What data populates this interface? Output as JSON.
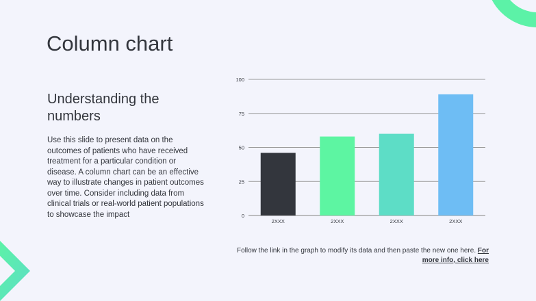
{
  "slide": {
    "title": "Column chart",
    "subtitle": "Understanding the numbers",
    "body": "Use this slide to present data on the outcomes of patients who have received treatment for a particular condition or disease. A column chart can be an effective way to illustrate changes in patient outcomes over time. Consider including data from clinical trials or real-world patient populations to showcase the impact",
    "footnote_text": "Follow the link in the graph to modify its data and then paste the new one here.",
    "footnote_link": "For more info, click here"
  },
  "colors": {
    "background": "#f3f4fc",
    "text": "#33363d",
    "accent_green": "#5cf2a7",
    "gridline": "#9a9a9a"
  },
  "chart_data": {
    "type": "bar",
    "title": "",
    "xlabel": "",
    "ylabel": "",
    "categories": [
      "2XXX",
      "2XXX",
      "2XXX",
      "2XXX"
    ],
    "values": [
      46,
      58,
      60,
      89
    ],
    "bar_colors": [
      "#33363d",
      "#5df5a2",
      "#5dddc6",
      "#6ebdf4"
    ],
    "ylim": [
      0,
      100
    ],
    "yticks": [
      0,
      25,
      50,
      75,
      100
    ],
    "grid": true,
    "legend": "none"
  }
}
